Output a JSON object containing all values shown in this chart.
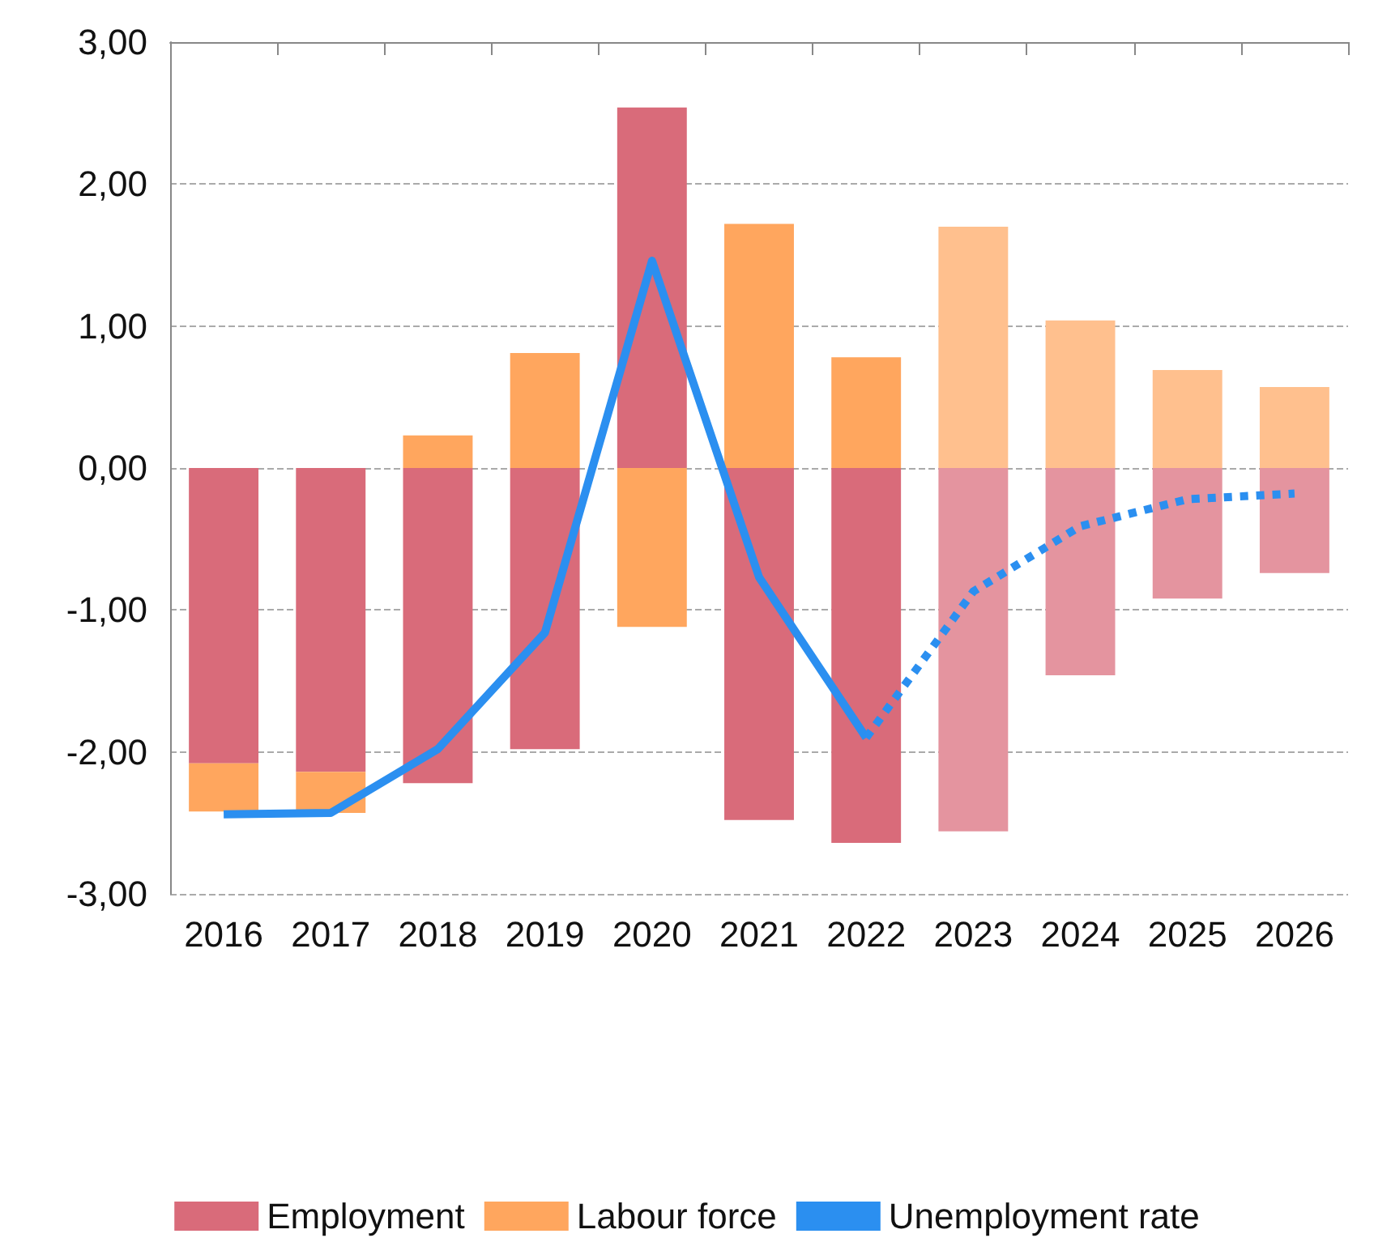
{
  "chart_data": {
    "type": "bar",
    "stacked": true,
    "categories": [
      "2016",
      "2017",
      "2018",
      "2019",
      "2020",
      "2021",
      "2022",
      "2023",
      "2024",
      "2025",
      "2026"
    ],
    "series": [
      {
        "name": "Employment",
        "color": "#d96b7a",
        "colors": [
          "#d96b7a",
          "#d96b7a",
          "#d96b7a",
          "#d96b7a",
          "#d96b7a",
          "#d96b7a",
          "#d96b7a",
          "#e4949f",
          "#e4949f",
          "#e4949f",
          "#e4949f"
        ],
        "values": [
          -2.08,
          -2.14,
          -2.22,
          -1.98,
          2.54,
          -2.48,
          -2.64,
          -2.56,
          -1.46,
          -0.92,
          -0.74
        ]
      },
      {
        "name": "Labour force",
        "color": "#ffa65e",
        "colors": [
          "#ffa65e",
          "#ffa65e",
          "#ffa65e",
          "#ffa65e",
          "#ffa65e",
          "#ffa65e",
          "#ffa65e",
          "#ffc08e",
          "#ffc08e",
          "#ffc08e",
          "#ffc08e"
        ],
        "values": [
          -0.34,
          -0.29,
          0.23,
          0.81,
          -1.12,
          1.72,
          0.78,
          1.7,
          1.04,
          0.69,
          0.57
        ]
      },
      {
        "name": "Unemployment rate",
        "type": "line",
        "color": "#2b8ff0",
        "line_style": "solid",
        "values": [
          -2.44,
          -2.43,
          -1.98,
          -1.16,
          1.46,
          -0.77,
          -1.9,
          null,
          null,
          null,
          null
        ]
      },
      {
        "type": "line",
        "color": "#2b8ff0",
        "line_style": "dotted",
        "values": [
          null,
          null,
          null,
          null,
          null,
          null,
          -1.9,
          -0.87,
          -0.41,
          -0.22,
          -0.18
        ]
      }
    ],
    "ylim": [
      -3,
      3
    ],
    "yticks": [
      {
        "value": -3,
        "label": "-3,00"
      },
      {
        "value": -2,
        "label": "-2,00"
      },
      {
        "value": -1,
        "label": "-1,00"
      },
      {
        "value": 0,
        "label": "0,00"
      },
      {
        "value": 1,
        "label": "1,00"
      },
      {
        "value": 2,
        "label": "2,00"
      },
      {
        "value": 3,
        "label": "3,00"
      }
    ],
    "grid": "y",
    "legend": "bottom",
    "marker": "none"
  }
}
